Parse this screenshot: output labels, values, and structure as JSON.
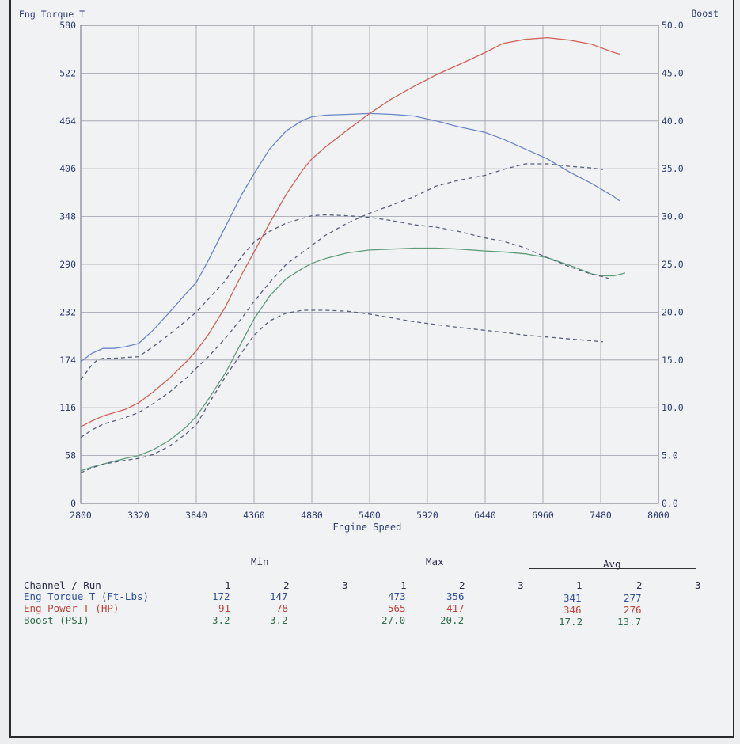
{
  "chart_data": {
    "type": "line",
    "xlabel": "Engine Speed",
    "ylabel_left": "Eng Torque T",
    "ylabel_right": "Boost",
    "xlim": [
      2800,
      8000
    ],
    "ylim_left": [
      0,
      580
    ],
    "ylim_right": [
      0,
      50
    ],
    "x_ticks": [
      "2800",
      "3320",
      "3840",
      "4360",
      "4880",
      "5400",
      "5920",
      "6440",
      "6960",
      "7480",
      "8000"
    ],
    "y_ticks_left": [
      "0",
      "58",
      "116",
      "174",
      "232",
      "290",
      "348",
      "406",
      "464",
      "522",
      "580"
    ],
    "y_ticks_right": [
      "0.0",
      "5.0",
      "10.0",
      "15.0",
      "20.0",
      "25.0",
      "30.0",
      "35.0",
      "40.0",
      "45.0",
      "50.0"
    ],
    "grid": true,
    "series": [
      {
        "key": "torque1",
        "axis": "left",
        "color": "#6b86c4",
        "dash": false,
        "x": [
          2800,
          2900,
          3000,
          3100,
          3200,
          3320,
          3450,
          3600,
          3750,
          3840,
          3950,
          4100,
          4250,
          4360,
          4500,
          4650,
          4800,
          4880,
          5000,
          5200,
          5400,
          5600,
          5800,
          6000,
          6200,
          6440,
          6600,
          6800,
          7000,
          7200,
          7400,
          7600,
          7650
        ],
        "y": [
          172,
          182,
          188,
          188,
          190,
          194,
          210,
          232,
          255,
          268,
          295,
          335,
          375,
          400,
          430,
          452,
          465,
          469,
          471,
          472,
          473,
          472,
          470,
          464,
          457,
          450,
          442,
          430,
          418,
          402,
          388,
          372,
          367
        ]
      },
      {
        "key": "power1",
        "axis": "left",
        "color": "#d2625a",
        "dash": false,
        "x": [
          2800,
          2900,
          3000,
          3100,
          3200,
          3320,
          3450,
          3600,
          3750,
          3840,
          3950,
          4100,
          4250,
          4360,
          4500,
          4650,
          4800,
          4880,
          5000,
          5200,
          5400,
          5600,
          5800,
          6000,
          6200,
          6440,
          6600,
          6800,
          7000,
          7200,
          7400,
          7600,
          7650
        ],
        "y": [
          93,
          100,
          106,
          110,
          114,
          122,
          135,
          152,
          172,
          185,
          205,
          238,
          278,
          305,
          340,
          375,
          405,
          418,
          432,
          453,
          473,
          491,
          506,
          520,
          532,
          547,
          558,
          563,
          565,
          562,
          557,
          547,
          545
        ]
      },
      {
        "key": "boost1",
        "axis": "right",
        "color": "#5f9c7a",
        "dash": false,
        "x": [
          2800,
          2900,
          3000,
          3100,
          3200,
          3320,
          3450,
          3600,
          3750,
          3840,
          3950,
          4100,
          4250,
          4360,
          4500,
          4650,
          4800,
          4880,
          5000,
          5200,
          5400,
          5600,
          5800,
          6000,
          6200,
          6440,
          6600,
          6800,
          7000,
          7200,
          7400,
          7500,
          7600,
          7700
        ],
        "y": [
          3.4,
          3.8,
          4.1,
          4.4,
          4.7,
          5.0,
          5.6,
          6.6,
          8.0,
          9.1,
          10.9,
          13.6,
          16.9,
          19.3,
          21.7,
          23.5,
          24.6,
          25.1,
          25.6,
          26.2,
          26.5,
          26.6,
          26.7,
          26.7,
          26.6,
          26.4,
          26.3,
          26.1,
          25.7,
          24.9,
          24.0,
          23.8,
          23.8,
          24.1
        ]
      },
      {
        "key": "torque2",
        "axis": "left",
        "color": "#55607a",
        "dash": true,
        "x": [
          2800,
          2900,
          2950,
          3000,
          3100,
          3200,
          3320,
          3450,
          3600,
          3750,
          3840,
          3950,
          4100,
          4250,
          4360,
          4500,
          4650,
          4800,
          4880,
          5000,
          5200,
          5400,
          5600,
          5800,
          6000,
          6200,
          6440,
          6600,
          6800,
          7000,
          7200,
          7400,
          7500,
          7550
        ],
        "y": [
          150,
          168,
          174,
          176,
          176,
          177,
          178,
          190,
          205,
          222,
          232,
          248,
          270,
          300,
          317,
          330,
          340,
          346,
          349,
          350,
          349,
          347,
          343,
          338,
          335,
          330,
          322,
          318,
          310,
          298,
          287,
          278,
          275,
          273
        ]
      },
      {
        "key": "power2",
        "axis": "left",
        "color": "#55607a",
        "dash": true,
        "x": [
          2800,
          2900,
          3000,
          3100,
          3200,
          3320,
          3450,
          3600,
          3750,
          3840,
          3950,
          4100,
          4250,
          4360,
          4500,
          4650,
          4800,
          4880,
          5000,
          5200,
          5400,
          5600,
          5800,
          6000,
          6200,
          6440,
          6600,
          6800,
          7000,
          7200,
          7400,
          7500
        ],
        "y": [
          80,
          89,
          96,
          100,
          104,
          110,
          121,
          135,
          152,
          164,
          178,
          200,
          225,
          245,
          268,
          290,
          305,
          313,
          325,
          340,
          352,
          362,
          372,
          385,
          392,
          398,
          405,
          412,
          412,
          409,
          407,
          405
        ]
      },
      {
        "key": "boost2",
        "axis": "right",
        "color": "#55607a",
        "dash": true,
        "x": [
          2800,
          2900,
          3000,
          3100,
          3200,
          3320,
          3450,
          3600,
          3750,
          3840,
          3950,
          4100,
          4250,
          4360,
          4500,
          4650,
          4800,
          4880,
          5000,
          5200,
          5400,
          5600,
          5800,
          6000,
          6200,
          6440,
          6600,
          6800,
          7000,
          7200,
          7400,
          7500
        ],
        "y": [
          3.2,
          3.7,
          4.1,
          4.3,
          4.5,
          4.7,
          5.1,
          6.0,
          7.3,
          8.2,
          10.4,
          13.2,
          15.8,
          17.6,
          19.1,
          19.9,
          20.2,
          20.2,
          20.2,
          20.1,
          19.8,
          19.4,
          19.0,
          18.7,
          18.4,
          18.1,
          17.9,
          17.6,
          17.4,
          17.2,
          17.0,
          16.9
        ]
      }
    ],
    "summary": {
      "header_min": "Min",
      "header_max": "Max",
      "header_avg": "Avg",
      "channel_header": "Channel / Run",
      "runs": [
        "1",
        "2",
        "3"
      ],
      "rows": [
        {
          "label": "Eng Torque T (Ft-Lbs)",
          "min": [
            "172",
            "147"
          ],
          "max": [
            "473",
            "356"
          ],
          "avg": [
            "341",
            "277"
          ]
        },
        {
          "label": "Eng Power T (HP)",
          "min": [
            "91",
            "78"
          ],
          "max": [
            "565",
            "417"
          ],
          "avg": [
            "346",
            "276"
          ]
        },
        {
          "label": "Boost (PSI)",
          "min": [
            "3.2",
            "3.2"
          ],
          "max": [
            "27.0",
            "20.2"
          ],
          "avg": [
            "17.2",
            "13.7"
          ]
        }
      ]
    }
  }
}
